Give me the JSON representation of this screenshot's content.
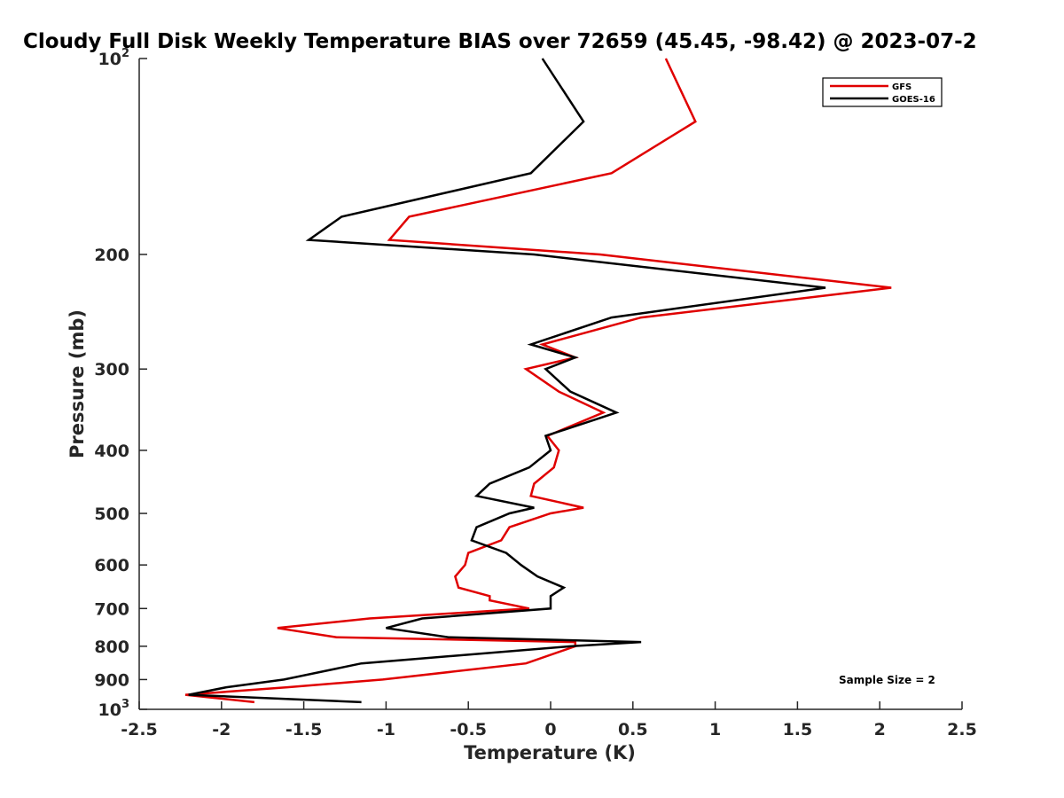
{
  "chart_data": {
    "type": "line",
    "title": "Cloudy Full Disk Weekly Temperature BIAS over 72659 (45.45, -98.42) @ 2023-07-2",
    "xlabel": "Temperature (K)",
    "ylabel": "Pressure (mb)",
    "xlim": [
      -2.5,
      2.5
    ],
    "ylim": [
      100,
      1000
    ],
    "y_scale": "log",
    "y_reversed": true,
    "x_ticks": [
      "-2.5",
      "-2",
      "-1.5",
      "-1",
      "-0.5",
      "0",
      "0.5",
      "1",
      "1.5",
      "2",
      "2.5"
    ],
    "y_ticks": [
      {
        "value": 100,
        "base": "10",
        "exp": "2"
      },
      {
        "value": 200,
        "base": "200",
        "exp": ""
      },
      {
        "value": 300,
        "base": "300",
        "exp": ""
      },
      {
        "value": 400,
        "base": "400",
        "exp": ""
      },
      {
        "value": 500,
        "base": "500",
        "exp": ""
      },
      {
        "value": 600,
        "base": "600",
        "exp": ""
      },
      {
        "value": 700,
        "base": "700",
        "exp": ""
      },
      {
        "value": 800,
        "base": "800",
        "exp": ""
      },
      {
        "value": 900,
        "base": "900",
        "exp": ""
      },
      {
        "value": 1000,
        "base": "10",
        "exp": "3"
      }
    ],
    "grid": false,
    "legend_position": "top-right",
    "series": [
      {
        "name": "GFS",
        "color": "#e00000",
        "points": [
          {
            "x": 0.7,
            "p": 100
          },
          {
            "x": 0.88,
            "p": 125
          },
          {
            "x": 0.37,
            "p": 150
          },
          {
            "x": -0.86,
            "p": 175
          },
          {
            "x": -0.98,
            "p": 190
          },
          {
            "x": 0.3,
            "p": 200
          },
          {
            "x": 2.07,
            "p": 225
          },
          {
            "x": 0.55,
            "p": 250
          },
          {
            "x": -0.05,
            "p": 275
          },
          {
            "x": 0.15,
            "p": 288
          },
          {
            "x": -0.15,
            "p": 300
          },
          {
            "x": 0.05,
            "p": 325
          },
          {
            "x": 0.32,
            "p": 350
          },
          {
            "x": -0.02,
            "p": 380
          },
          {
            "x": 0.05,
            "p": 400
          },
          {
            "x": 0.02,
            "p": 425
          },
          {
            "x": -0.1,
            "p": 450
          },
          {
            "x": -0.12,
            "p": 470
          },
          {
            "x": 0.2,
            "p": 490
          },
          {
            "x": 0.0,
            "p": 500
          },
          {
            "x": -0.25,
            "p": 525
          },
          {
            "x": -0.3,
            "p": 550
          },
          {
            "x": -0.5,
            "p": 575
          },
          {
            "x": -0.52,
            "p": 600
          },
          {
            "x": -0.58,
            "p": 625
          },
          {
            "x": -0.56,
            "p": 650
          },
          {
            "x": -0.37,
            "p": 670
          },
          {
            "x": -0.37,
            "p": 680
          },
          {
            "x": -0.13,
            "p": 700
          },
          {
            "x": -1.1,
            "p": 725
          },
          {
            "x": -1.66,
            "p": 750
          },
          {
            "x": -1.3,
            "p": 775
          },
          {
            "x": 0.15,
            "p": 788
          },
          {
            "x": 0.15,
            "p": 800
          },
          {
            "x": -0.15,
            "p": 850
          },
          {
            "x": -1.02,
            "p": 900
          },
          {
            "x": -1.6,
            "p": 925
          },
          {
            "x": -2.22,
            "p": 950
          },
          {
            "x": -1.8,
            "p": 975
          }
        ]
      },
      {
        "name": "GOES-16",
        "color": "#000000",
        "points": [
          {
            "x": -0.05,
            "p": 100
          },
          {
            "x": 0.2,
            "p": 125
          },
          {
            "x": -0.12,
            "p": 150
          },
          {
            "x": -1.27,
            "p": 175
          },
          {
            "x": -1.47,
            "p": 190
          },
          {
            "x": -0.1,
            "p": 200
          },
          {
            "x": 1.67,
            "p": 225
          },
          {
            "x": 0.37,
            "p": 250
          },
          {
            "x": -0.12,
            "p": 275
          },
          {
            "x": 0.15,
            "p": 288
          },
          {
            "x": -0.03,
            "p": 300
          },
          {
            "x": 0.12,
            "p": 325
          },
          {
            "x": 0.4,
            "p": 350
          },
          {
            "x": -0.03,
            "p": 380
          },
          {
            "x": 0.0,
            "p": 400
          },
          {
            "x": -0.13,
            "p": 425
          },
          {
            "x": -0.37,
            "p": 450
          },
          {
            "x": -0.45,
            "p": 470
          },
          {
            "x": -0.1,
            "p": 490
          },
          {
            "x": -0.25,
            "p": 500
          },
          {
            "x": -0.45,
            "p": 525
          },
          {
            "x": -0.48,
            "p": 550
          },
          {
            "x": -0.27,
            "p": 575
          },
          {
            "x": -0.18,
            "p": 600
          },
          {
            "x": -0.08,
            "p": 625
          },
          {
            "x": 0.08,
            "p": 650
          },
          {
            "x": 0.0,
            "p": 670
          },
          {
            "x": 0.0,
            "p": 680
          },
          {
            "x": 0.0,
            "p": 700
          },
          {
            "x": -0.78,
            "p": 725
          },
          {
            "x": -1.0,
            "p": 750
          },
          {
            "x": -0.62,
            "p": 775
          },
          {
            "x": 0.55,
            "p": 788
          },
          {
            "x": 0.12,
            "p": 800
          },
          {
            "x": -1.15,
            "p": 850
          },
          {
            "x": -1.62,
            "p": 900
          },
          {
            "x": -1.97,
            "p": 925
          },
          {
            "x": -2.2,
            "p": 950
          },
          {
            "x": -1.15,
            "p": 975
          }
        ]
      }
    ],
    "annotations": [
      {
        "text": "Sample Size = 2"
      }
    ]
  }
}
